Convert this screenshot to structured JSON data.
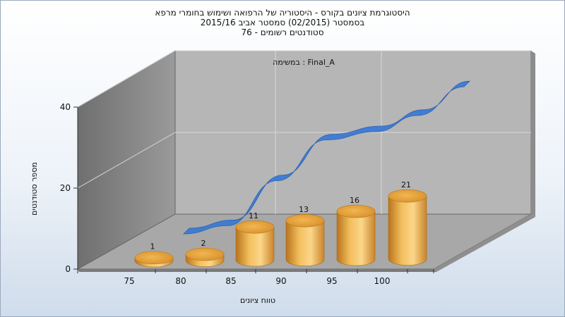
{
  "title_lines": [
    "היסטוגרמת ציונים בקורס - היסטוריה של הרפואה ושימוש בחומרי מרפא",
    "בסמסטר  (02/2015)  סמסטר אביב 2015/16",
    "סטודנטים רשומים - 76"
  ],
  "chart_data": {
    "type": "bar",
    "annotation": "במשימה : Final_A",
    "xlabel": "טווח ציונים",
    "ylabel": "מספר סטודנטים",
    "categories": [
      "75",
      "80",
      "85",
      "90",
      "95",
      "100"
    ],
    "values": [
      1,
      2,
      11,
      13,
      16,
      21
    ],
    "yticks": [
      "0",
      "20",
      "40"
    ],
    "ylim": [
      0,
      40
    ],
    "cumulative_line": [
      0,
      2,
      13,
      23,
      25,
      29
    ],
    "colors": {
      "bar": "#e8a53c",
      "line": "#3b7ad4",
      "wall": "#b8b8b8",
      "floor": "#a6a6a6"
    },
    "grid": true
  }
}
